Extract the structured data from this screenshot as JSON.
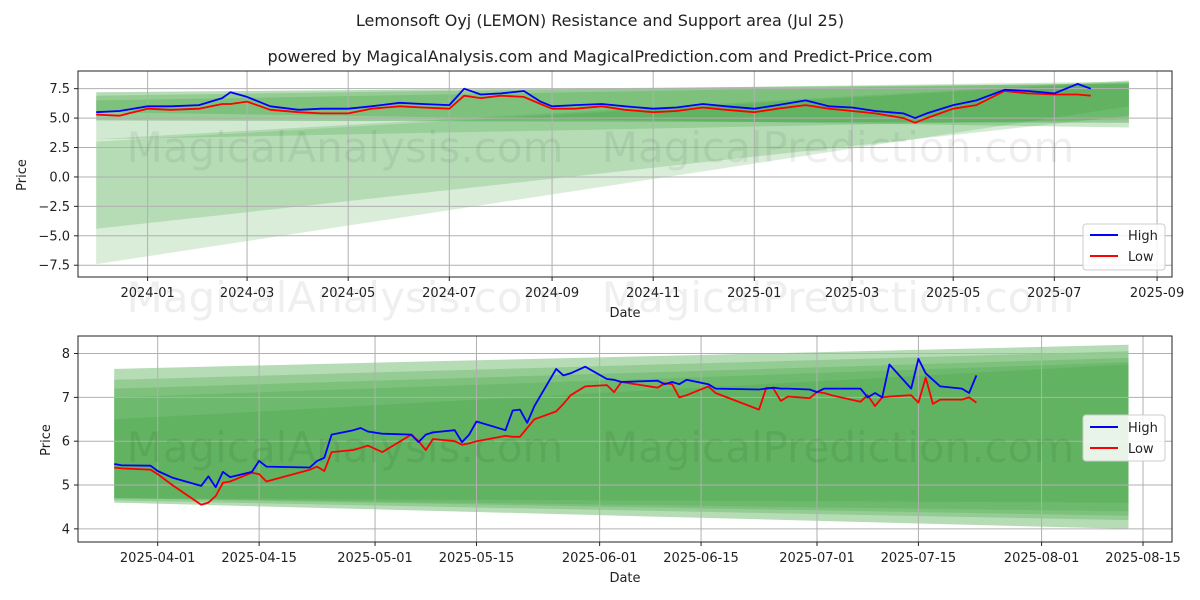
{
  "title": "Lemonsoft Oyj (LEMON) Resistance and Support area (Jul 25)",
  "subtitle": "powered by MagicalAnalysis.com and MagicalPrediction.com and Predict-Price.com",
  "watermarks": [
    "MagicalAnalysis.com",
    "MagicalPrediction.com"
  ],
  "colors": {
    "high": "#0000ff",
    "low": "#ff0000",
    "band": "#2e9a2e",
    "grid": "#b0b0b0"
  },
  "chart_data": [
    {
      "type": "line",
      "xlabel": "Date",
      "ylabel": "Price",
      "xlim": [
        "2023-11-20",
        "2025-09-10"
      ],
      "ylim": [
        -8.5,
        9.0
      ],
      "grid": true,
      "legend": "bottom-right",
      "x_ticks": [
        "2024-01",
        "2024-03",
        "2024-05",
        "2024-07",
        "2024-09",
        "2024-11",
        "2025-01",
        "2025-03",
        "2025-05",
        "2025-07",
        "2025-09"
      ],
      "y_ticks": [
        "7.5",
        "5.0",
        "2.5",
        "0.0",
        "−2.5",
        "−5.0",
        "−7.5"
      ],
      "y_tick_values": [
        7.5,
        5.0,
        2.5,
        0.0,
        -2.5,
        -5.0,
        -7.5
      ],
      "bands": [
        {
          "x": [
            "2023-12-01",
            "2025-08-15"
          ],
          "upper": [
            7.2,
            7.9
          ],
          "lower": [
            4.8,
            4.6
          ]
        },
        {
          "x": [
            "2023-12-01",
            "2025-08-15"
          ],
          "upper": [
            6.9,
            8.1
          ],
          "lower": [
            5.5,
            4.2
          ]
        },
        {
          "x": [
            "2023-12-01",
            "2025-08-15"
          ],
          "upper": [
            6.5,
            8.0
          ],
          "lower": [
            3.2,
            4.9
          ]
        },
        {
          "x": [
            "2023-12-01",
            "2025-08-15"
          ],
          "upper": [
            3.2,
            8.2
          ],
          "lower": [
            -4.4,
            5.2
          ]
        },
        {
          "x": [
            "2023-12-01",
            "2025-08-15"
          ],
          "upper": [
            3.0,
            8.1
          ],
          "lower": [
            -7.4,
            6.0
          ]
        }
      ],
      "series": [
        {
          "name": "High",
          "x": [
            "2023-12-01",
            "2023-12-15",
            "2024-01-01",
            "2024-01-15",
            "2024-02-01",
            "2024-02-15",
            "2024-02-20",
            "2024-03-01",
            "2024-03-15",
            "2024-04-01",
            "2024-04-15",
            "2024-05-01",
            "2024-05-15",
            "2024-06-01",
            "2024-06-15",
            "2024-07-01",
            "2024-07-10",
            "2024-07-20",
            "2024-08-01",
            "2024-08-15",
            "2024-08-25",
            "2024-09-01",
            "2024-09-15",
            "2024-10-01",
            "2024-10-15",
            "2024-11-01",
            "2024-11-15",
            "2024-12-01",
            "2024-12-15",
            "2025-01-01",
            "2025-01-15",
            "2025-02-01",
            "2025-02-15",
            "2025-03-01",
            "2025-03-15",
            "2025-04-01",
            "2025-04-08",
            "2025-04-15",
            "2025-05-01",
            "2025-05-15",
            "2025-06-01",
            "2025-06-15",
            "2025-07-01",
            "2025-07-15",
            "2025-07-23"
          ],
          "values": [
            5.5,
            5.6,
            6.0,
            6.0,
            6.1,
            6.7,
            7.2,
            6.8,
            6.0,
            5.7,
            5.8,
            5.8,
            6.0,
            6.3,
            6.2,
            6.1,
            7.5,
            7.0,
            7.1,
            7.3,
            6.4,
            6.0,
            6.1,
            6.2,
            6.0,
            5.8,
            5.9,
            6.2,
            6.0,
            5.8,
            6.1,
            6.5,
            6.0,
            5.9,
            5.6,
            5.4,
            5.0,
            5.4,
            6.1,
            6.5,
            7.4,
            7.3,
            7.1,
            7.9,
            7.5
          ]
        },
        {
          "name": "Low",
          "x": [
            "2023-12-01",
            "2023-12-15",
            "2024-01-01",
            "2024-01-15",
            "2024-02-01",
            "2024-02-15",
            "2024-02-20",
            "2024-03-01",
            "2024-03-15",
            "2024-04-01",
            "2024-04-15",
            "2024-05-01",
            "2024-05-15",
            "2024-06-01",
            "2024-06-15",
            "2024-07-01",
            "2024-07-10",
            "2024-07-20",
            "2024-08-01",
            "2024-08-15",
            "2024-08-25",
            "2024-09-01",
            "2024-09-15",
            "2024-10-01",
            "2024-10-15",
            "2024-11-01",
            "2024-11-15",
            "2024-12-01",
            "2024-12-15",
            "2025-01-01",
            "2025-01-15",
            "2025-02-01",
            "2025-02-15",
            "2025-03-01",
            "2025-03-15",
            "2025-04-01",
            "2025-04-08",
            "2025-04-15",
            "2025-05-01",
            "2025-05-15",
            "2025-06-01",
            "2025-06-15",
            "2025-07-01",
            "2025-07-15",
            "2025-07-23"
          ],
          "values": [
            5.3,
            5.2,
            5.8,
            5.7,
            5.8,
            6.2,
            6.2,
            6.4,
            5.7,
            5.5,
            5.4,
            5.4,
            5.8,
            6.0,
            5.9,
            5.8,
            6.9,
            6.7,
            6.9,
            6.8,
            6.2,
            5.8,
            5.8,
            6.0,
            5.7,
            5.5,
            5.6,
            5.9,
            5.7,
            5.5,
            5.8,
            6.1,
            5.8,
            5.6,
            5.4,
            5.0,
            4.6,
            5.0,
            5.8,
            6.1,
            7.3,
            7.1,
            7.0,
            7.0,
            6.9
          ]
        }
      ]
    },
    {
      "type": "line",
      "xlabel": "Date",
      "ylabel": "Price",
      "xlim": [
        "2025-03-21",
        "2025-08-19"
      ],
      "ylim": [
        3.7,
        8.4
      ],
      "grid": true,
      "legend": "center-right",
      "x_ticks": [
        "2025-04-01",
        "2025-04-15",
        "2025-05-01",
        "2025-05-15",
        "2025-06-01",
        "2025-06-15",
        "2025-07-01",
        "2025-07-15",
        "2025-08-01",
        "2025-08-15"
      ],
      "y_ticks": [
        "8",
        "7",
        "6",
        "5",
        "4"
      ],
      "y_tick_values": [
        8,
        7,
        6,
        5,
        4
      ],
      "bands": [
        {
          "x": [
            "2025-03-26",
            "2025-08-13"
          ],
          "upper": [
            7.65,
            8.2
          ],
          "lower": [
            4.6,
            4.0
          ]
        },
        {
          "x": [
            "2025-03-26",
            "2025-08-13"
          ],
          "upper": [
            7.4,
            8.05
          ],
          "lower": [
            4.65,
            4.2
          ]
        },
        {
          "x": [
            "2025-03-26",
            "2025-08-13"
          ],
          "upper": [
            7.2,
            7.9
          ],
          "lower": [
            4.7,
            4.3
          ]
        },
        {
          "x": [
            "2025-03-26",
            "2025-08-13"
          ],
          "upper": [
            7.0,
            7.8
          ],
          "lower": [
            4.7,
            4.4
          ]
        },
        {
          "x": [
            "2025-03-26",
            "2025-08-13"
          ],
          "upper": [
            6.5,
            7.75
          ],
          "lower": [
            4.7,
            4.6
          ]
        }
      ],
      "series": [
        {
          "name": "High",
          "x": [
            "2025-03-26",
            "2025-03-27",
            "2025-03-31",
            "2025-04-01",
            "2025-04-03",
            "2025-04-07",
            "2025-04-08",
            "2025-04-09",
            "2025-04-10",
            "2025-04-11",
            "2025-04-14",
            "2025-04-15",
            "2025-04-16",
            "2025-04-22",
            "2025-04-23",
            "2025-04-24",
            "2025-04-25",
            "2025-04-28",
            "2025-04-29",
            "2025-04-30",
            "2025-05-02",
            "2025-05-06",
            "2025-05-07",
            "2025-05-08",
            "2025-05-09",
            "2025-05-12",
            "2025-05-13",
            "2025-05-14",
            "2025-05-15",
            "2025-05-19",
            "2025-05-20",
            "2025-05-21",
            "2025-05-22",
            "2025-05-23",
            "2025-05-26",
            "2025-05-27",
            "2025-05-28",
            "2025-05-30",
            "2025-06-02",
            "2025-06-03",
            "2025-06-04",
            "2025-06-09",
            "2025-06-10",
            "2025-06-11",
            "2025-06-12",
            "2025-06-13",
            "2025-06-16",
            "2025-06-17",
            "2025-06-23",
            "2025-06-24",
            "2025-06-25",
            "2025-06-26",
            "2025-06-27",
            "2025-06-30",
            "2025-07-01",
            "2025-07-02",
            "2025-07-03",
            "2025-07-07",
            "2025-07-08",
            "2025-07-09",
            "2025-07-10",
            "2025-07-11",
            "2025-07-14",
            "2025-07-15",
            "2025-07-16",
            "2025-07-17",
            "2025-07-18",
            "2025-07-21",
            "2025-07-22",
            "2025-07-23"
          ],
          "values": [
            5.48,
            5.45,
            5.44,
            5.32,
            5.17,
            4.98,
            5.2,
            4.95,
            5.3,
            5.18,
            5.3,
            5.55,
            5.42,
            5.4,
            5.55,
            5.62,
            6.15,
            6.25,
            6.3,
            6.22,
            6.17,
            6.15,
            5.98,
            6.15,
            6.2,
            6.25,
            5.98,
            6.15,
            6.45,
            6.25,
            6.7,
            6.72,
            6.42,
            6.8,
            7.65,
            7.5,
            7.55,
            7.7,
            7.42,
            7.4,
            7.35,
            7.38,
            7.3,
            7.35,
            7.3,
            7.4,
            7.3,
            7.2,
            7.18,
            7.2,
            7.22,
            7.2,
            7.2,
            7.18,
            7.12,
            7.2,
            7.2,
            7.2,
            7.0,
            7.1,
            7.0,
            7.75,
            7.2,
            7.88,
            7.55,
            7.4,
            7.25,
            7.2,
            7.1,
            7.5
          ]
        },
        {
          "name": "Low",
          "x": [
            "2025-03-26",
            "2025-03-27",
            "2025-03-31",
            "2025-04-01",
            "2025-04-03",
            "2025-04-07",
            "2025-04-08",
            "2025-04-09",
            "2025-04-10",
            "2025-04-11",
            "2025-04-14",
            "2025-04-15",
            "2025-04-16",
            "2025-04-22",
            "2025-04-23",
            "2025-04-24",
            "2025-04-25",
            "2025-04-28",
            "2025-04-29",
            "2025-04-30",
            "2025-05-02",
            "2025-05-06",
            "2025-05-07",
            "2025-05-08",
            "2025-05-09",
            "2025-05-12",
            "2025-05-13",
            "2025-05-14",
            "2025-05-15",
            "2025-05-19",
            "2025-05-20",
            "2025-05-21",
            "2025-05-22",
            "2025-05-23",
            "2025-05-26",
            "2025-05-27",
            "2025-05-28",
            "2025-05-30",
            "2025-06-02",
            "2025-06-03",
            "2025-06-04",
            "2025-06-09",
            "2025-06-10",
            "2025-06-11",
            "2025-06-12",
            "2025-06-13",
            "2025-06-16",
            "2025-06-17",
            "2025-06-23",
            "2025-06-24",
            "2025-06-25",
            "2025-06-26",
            "2025-06-27",
            "2025-06-30",
            "2025-07-01",
            "2025-07-02",
            "2025-07-03",
            "2025-07-07",
            "2025-07-08",
            "2025-07-09",
            "2025-07-10",
            "2025-07-11",
            "2025-07-14",
            "2025-07-15",
            "2025-07-16",
            "2025-07-17",
            "2025-07-18",
            "2025-07-21",
            "2025-07-22",
            "2025-07-23"
          ],
          "values": [
            5.4,
            5.38,
            5.35,
            5.25,
            5.0,
            4.55,
            4.6,
            4.75,
            5.05,
            5.08,
            5.28,
            5.25,
            5.08,
            5.35,
            5.42,
            5.32,
            5.75,
            5.8,
            5.85,
            5.9,
            5.75,
            6.15,
            6.0,
            5.8,
            6.05,
            6.0,
            5.92,
            5.95,
            6.0,
            6.12,
            6.1,
            6.1,
            6.3,
            6.5,
            6.68,
            6.85,
            7.05,
            7.25,
            7.28,
            7.12,
            7.35,
            7.22,
            7.32,
            7.3,
            7.0,
            7.05,
            7.25,
            7.1,
            6.72,
            7.22,
            7.2,
            6.92,
            7.02,
            6.98,
            7.12,
            7.1,
            7.05,
            6.9,
            7.05,
            6.8,
            7.0,
            7.02,
            7.05,
            6.88,
            7.45,
            6.85,
            6.95,
            6.95,
            7.0,
            6.88
          ]
        }
      ]
    }
  ]
}
